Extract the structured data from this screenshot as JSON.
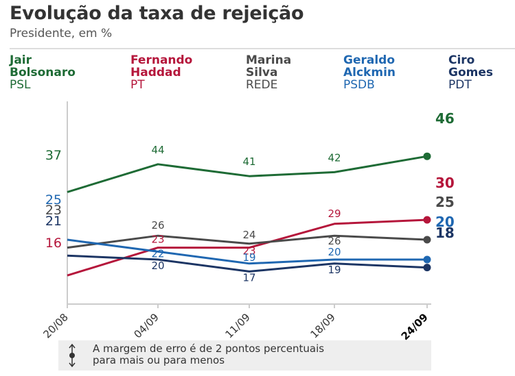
{
  "header": {
    "title": "Evolução da taxa de rejeição",
    "subtitle": "Presidente, em %"
  },
  "legend": [
    {
      "name": "Jair\nBolsonaro",
      "party": "PSL",
      "color": "#1e6b35"
    },
    {
      "name": "Fernando\nHaddad",
      "party": "PT",
      "color": "#b5163b"
    },
    {
      "name": "Marina\nSilva",
      "party": "REDE",
      "color": "#4a4a4a"
    },
    {
      "name": "Geraldo\nAlckmin",
      "party": "PSDB",
      "color": "#1f67b1"
    },
    {
      "name": "Ciro\nGomes",
      "party": "PDT",
      "color": "#1c3564"
    }
  ],
  "note": {
    "text": "A margem de erro é de 2 pontos percentuais\npara mais ou para menos",
    "icon": "error-margin-icon"
  },
  "chart_data": {
    "type": "line",
    "title": "Evolução da taxa de rejeição",
    "subtitle": "Presidente, em %",
    "x": [
      "20/08",
      "04/09",
      "11/09",
      "18/09",
      "24/09"
    ],
    "ylim": [
      0,
      50
    ],
    "grid": false,
    "legend_position": "top",
    "series": [
      {
        "name": "Jair Bolsonaro",
        "party": "PSL",
        "color": "#1e6b35",
        "values": [
          37,
          44,
          41,
          42,
          46
        ]
      },
      {
        "name": "Fernando Haddad",
        "party": "PT",
        "color": "#b5163b",
        "values": [
          16,
          23,
          23,
          29,
          30
        ]
      },
      {
        "name": "Marina Silva",
        "party": "REDE",
        "color": "#4a4a4a",
        "values": [
          23,
          26,
          24,
          26,
          25
        ]
      },
      {
        "name": "Geraldo Alckmin",
        "party": "PSDB",
        "color": "#1f67b1",
        "values": [
          25,
          22,
          19,
          20,
          20
        ]
      },
      {
        "name": "Ciro Gomes",
        "party": "PDT",
        "color": "#1c3564",
        "values": [
          21,
          20,
          17,
          19,
          18
        ]
      }
    ]
  }
}
